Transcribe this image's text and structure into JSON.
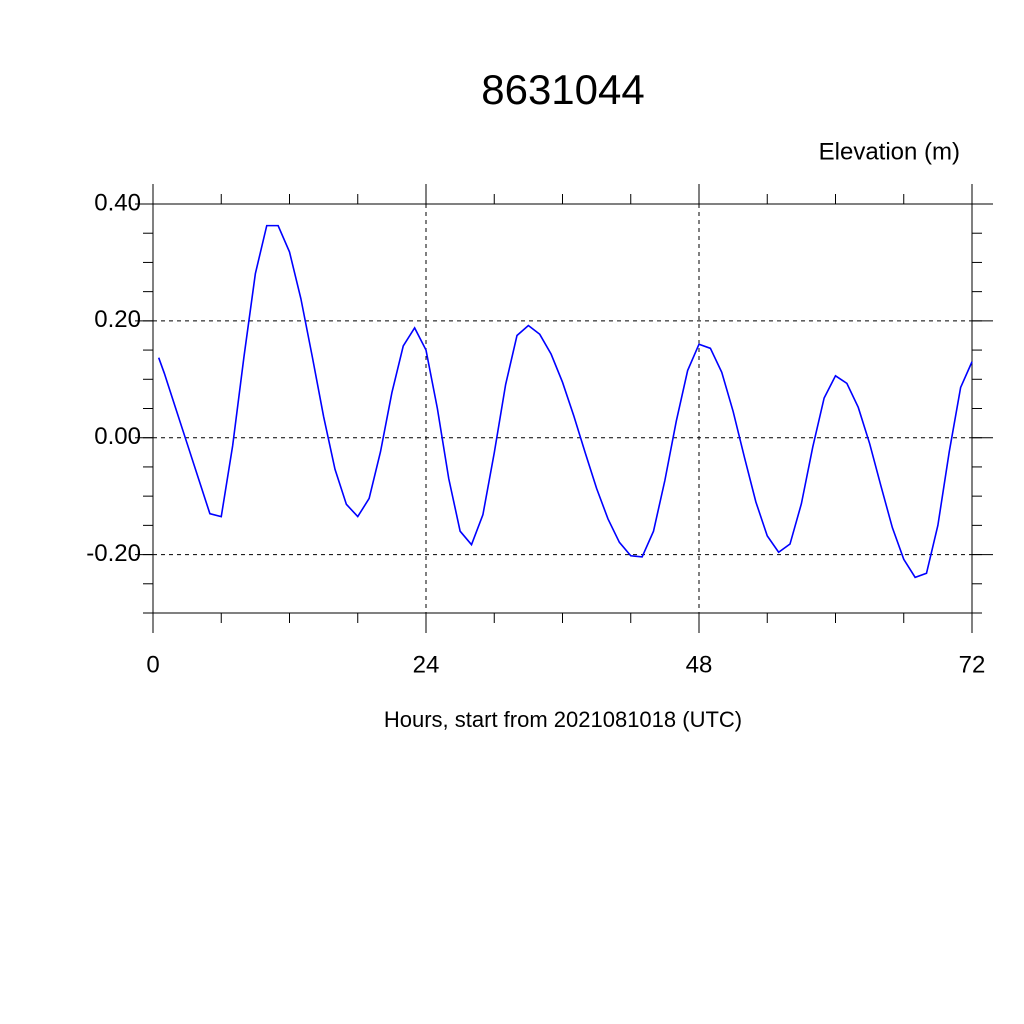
{
  "chart_data": {
    "type": "line",
    "title": "8631044",
    "subtitle": "Elevation (m)",
    "x_label": "Hours, start from 2021081018 (UTC)",
    "x": [
      0.5,
      1,
      2,
      3,
      4,
      5,
      6,
      7,
      8,
      9,
      10,
      11,
      12,
      13,
      14,
      15,
      16,
      17,
      18,
      19,
      20,
      21,
      22,
      23,
      24,
      25,
      26,
      27,
      28,
      29,
      30,
      31,
      32,
      33,
      34,
      35,
      36,
      37,
      38,
      39,
      40,
      41,
      42,
      43,
      44,
      45,
      46,
      47,
      48,
      49,
      50,
      51,
      52,
      53,
      54,
      55,
      56,
      57,
      58,
      59,
      60,
      61,
      62,
      63,
      64,
      65,
      66,
      67,
      68,
      69,
      70,
      71,
      72
    ],
    "series": [
      {
        "color": "#0000ff",
        "values": [
          0.137,
          0.11,
          0.05,
          -0.01,
          -0.07,
          -0.13,
          -0.135,
          -0.014,
          0.139,
          0.281,
          0.363,
          0.363,
          0.318,
          0.238,
          0.139,
          0.036,
          -0.054,
          -0.114,
          -0.135,
          -0.104,
          -0.024,
          0.077,
          0.157,
          0.188,
          0.15,
          0.05,
          -0.07,
          -0.16,
          -0.183,
          -0.132,
          -0.026,
          0.091,
          0.175,
          0.192,
          0.177,
          0.143,
          0.095,
          0.037,
          -0.026,
          -0.087,
          -0.139,
          -0.179,
          -0.202,
          -0.204,
          -0.16,
          -0.073,
          0.028,
          0.115,
          0.16,
          0.153,
          0.112,
          0.045,
          -0.034,
          -0.11,
          -0.168,
          -0.196,
          -0.182,
          -0.113,
          -0.016,
          0.068,
          0.106,
          0.093,
          0.052,
          -0.01,
          -0.083,
          -0.154,
          -0.208,
          -0.239,
          -0.232,
          -0.15,
          -0.024,
          0.086,
          0.13
        ]
      }
    ],
    "xlim": [
      0,
      72
    ],
    "xticks": [
      0,
      24,
      48,
      72
    ],
    "ylim": [
      -0.3,
      0.4
    ],
    "yticks": [
      {
        "value": -0.2,
        "label": "-0.20"
      },
      {
        "value": 0,
        "label": "0.00"
      },
      {
        "value": 0.2,
        "label": "0.20"
      },
      {
        "value": 0.4,
        "label": "0.40"
      }
    ],
    "grid": true
  }
}
